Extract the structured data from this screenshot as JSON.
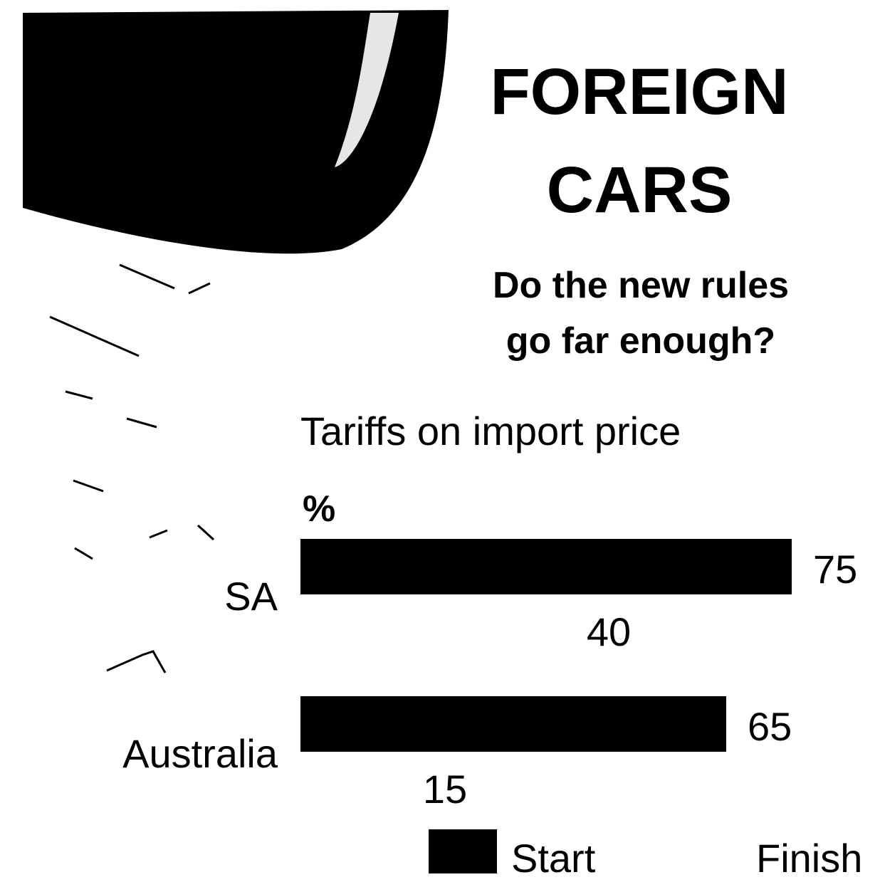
{
  "chart_data": {
    "type": "bar",
    "orientation": "horizontal",
    "title": "FOREIGN CARS",
    "subtitle": "Do the new rules go far enough?",
    "description": "Tariffs on import price",
    "unit": "%",
    "categories": [
      "SA",
      "Australia"
    ],
    "series": [
      {
        "name": "Start",
        "color": "#000000",
        "values": [
          75,
          65
        ]
      },
      {
        "name": "Finish",
        "color": "#ffffff",
        "values": [
          40,
          15
        ]
      }
    ]
  }
}
